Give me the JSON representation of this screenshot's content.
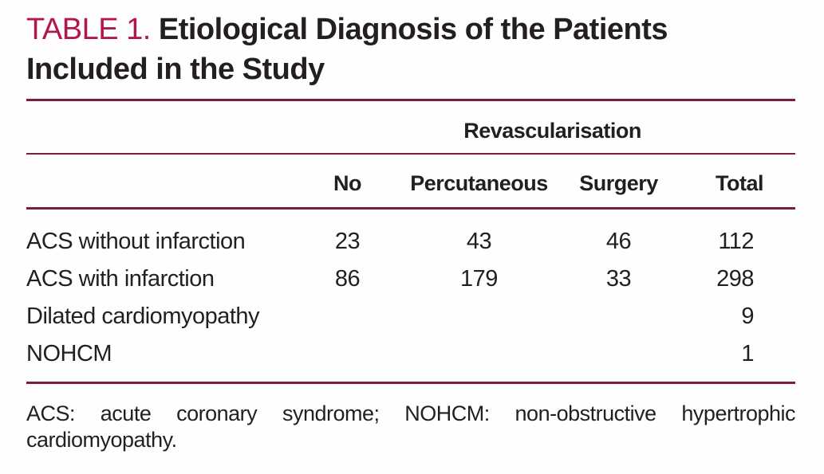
{
  "title": {
    "label": "TABLE 1.",
    "text": "Etiological Diagnosis of the Patients Included in the Study"
  },
  "header": {
    "spanner": "Revascularisation",
    "columns": {
      "no": "No",
      "percutaneous": "Percutaneous",
      "surgery": "Surgery",
      "total": "Total"
    }
  },
  "rows": [
    {
      "diagnosis": "ACS without infarction",
      "no": "23",
      "percutaneous": "43",
      "surgery": "46",
      "total": "112"
    },
    {
      "diagnosis": "ACS with infarction",
      "no": "86",
      "percutaneous": "179",
      "surgery": "33",
      "total": "298"
    },
    {
      "diagnosis": "Dilated cardiomyopathy",
      "no": "",
      "percutaneous": "",
      "surgery": "",
      "total": "9"
    },
    {
      "diagnosis": "NOHCM",
      "no": "",
      "percutaneous": "",
      "surgery": "",
      "total": "1"
    }
  ],
  "footnote": {
    "line1": "ACS: acute coronary syndrome; NOHCM: non-obstructive hypertrophic",
    "line2": "cardiomyopathy."
  },
  "colors": {
    "accent_red": "#b5164a",
    "rule_maroon": "#7e1b3e",
    "text": "#231f20",
    "background": "#fefefe"
  }
}
